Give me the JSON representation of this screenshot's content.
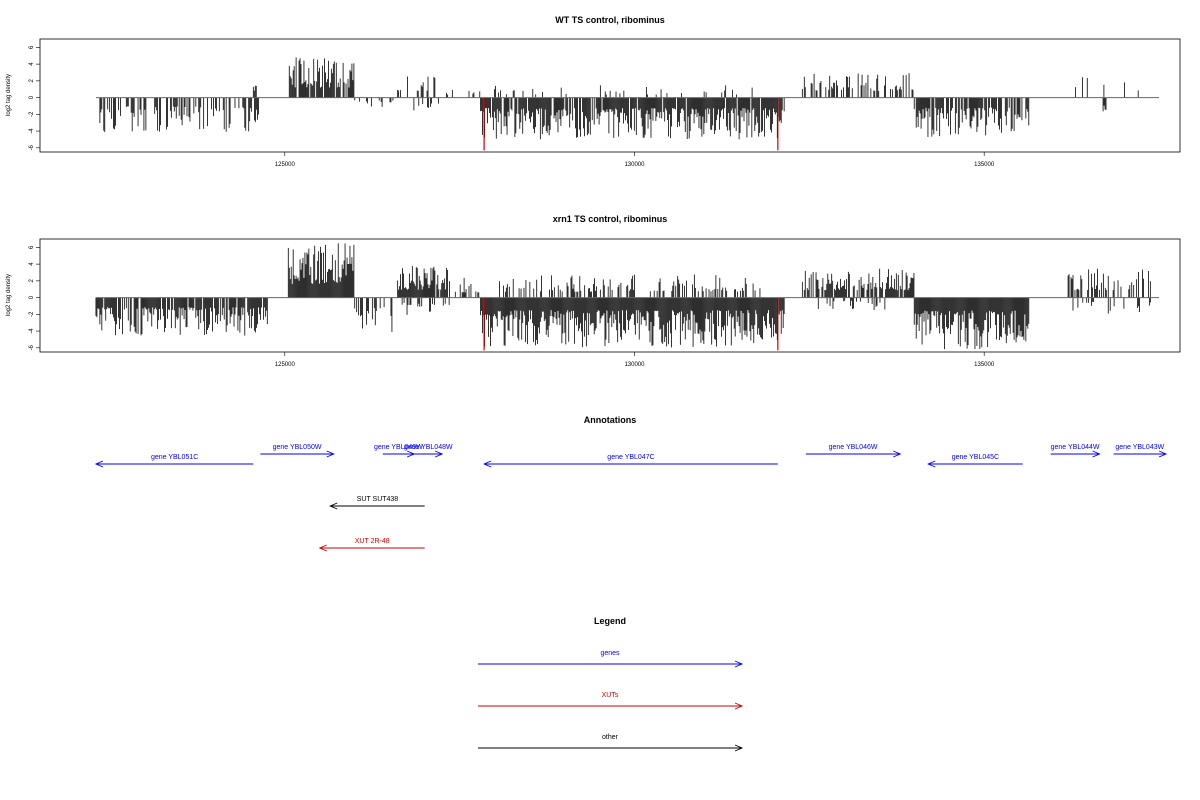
{
  "chart_data": [
    {
      "type": "bar",
      "title": "WT TS control, ribominus",
      "ylabel": "log2 tag density",
      "xlim": [
        121500,
        137800
      ],
      "ylim": [
        -6.5,
        7
      ],
      "x_ticks": [
        125000,
        130000,
        135000
      ],
      "x_tick_labels": [
        "125000",
        "130000",
        "135000"
      ],
      "y_ticks": [
        -6,
        -4,
        -2,
        0,
        2,
        4,
        6
      ],
      "y_tick_labels": [
        "-6",
        "-4",
        "-2",
        "0",
        "2",
        "4",
        "6"
      ],
      "color": "#000000",
      "highlight_color": "#cc0000",
      "profile": [
        {
          "start": 122300,
          "end": 124750,
          "sign": -1,
          "max": 4.2,
          "density": 0.45
        },
        {
          "start": 124550,
          "end": 124600,
          "sign": 1,
          "max": 1.5,
          "density": 1
        },
        {
          "start": 125050,
          "end": 126000,
          "sign": 1,
          "max": 4.8,
          "density": 0.85
        },
        {
          "start": 126000,
          "end": 126550,
          "sign": -1,
          "max": 1.2,
          "density": 0.3
        },
        {
          "start": 126600,
          "end": 127150,
          "sign": 1,
          "max": 2.8,
          "density": 0.35
        },
        {
          "start": 126650,
          "end": 127350,
          "sign": -1,
          "max": 2.5,
          "density": 0.3
        },
        {
          "start": 127200,
          "end": 127800,
          "sign": 1,
          "max": 1.2,
          "density": 0.15
        },
        {
          "start": 127800,
          "end": 132150,
          "sign": -1,
          "max": 5.0,
          "density": 0.9
        },
        {
          "start": 128000,
          "end": 131800,
          "sign": 1,
          "max": 1.5,
          "density": 0.12
        },
        {
          "start": 132400,
          "end": 134000,
          "sign": 1,
          "max": 3.2,
          "density": 0.4
        },
        {
          "start": 134000,
          "end": 135650,
          "sign": -1,
          "max": 4.8,
          "density": 0.75
        },
        {
          "start": 136250,
          "end": 137300,
          "sign": 1,
          "max": 2.7,
          "density": 0.12
        },
        {
          "start": 136700,
          "end": 136750,
          "sign": -1,
          "max": 1.7,
          "density": 1
        }
      ],
      "highlights": [
        {
          "x": 127850,
          "y": -6.3
        },
        {
          "x": 132050,
          "y": -6.3
        }
      ]
    },
    {
      "type": "bar",
      "title": "xrn1 TS control, ribominus",
      "ylabel": "log2 tag density",
      "xlim": [
        121500,
        137800
      ],
      "ylim": [
        -6.5,
        7
      ],
      "x_ticks": [
        125000,
        130000,
        135000
      ],
      "x_tick_labels": [
        "125000",
        "130000",
        "135000"
      ],
      "y_ticks": [
        -6,
        -4,
        -2,
        0,
        2,
        4,
        6
      ],
      "y_tick_labels": [
        "-6",
        "-4",
        "-2",
        "0",
        "2",
        "4",
        "6"
      ],
      "color": "#000000",
      "highlight_color": "#cc0000",
      "profile": [
        {
          "start": 122300,
          "end": 124750,
          "sign": -1,
          "max": 4.6,
          "density": 0.85
        },
        {
          "start": 125050,
          "end": 126000,
          "sign": 1,
          "max": 6.5,
          "density": 1
        },
        {
          "start": 126000,
          "end": 126550,
          "sign": -1,
          "max": 4.5,
          "density": 0.5
        },
        {
          "start": 126600,
          "end": 127350,
          "sign": 1,
          "max": 3.8,
          "density": 0.8
        },
        {
          "start": 126650,
          "end": 127350,
          "sign": -1,
          "max": 2.5,
          "density": 0.4
        },
        {
          "start": 127200,
          "end": 127800,
          "sign": 1,
          "max": 2.5,
          "density": 0.35
        },
        {
          "start": 127800,
          "end": 132150,
          "sign": -1,
          "max": 6.0,
          "density": 1
        },
        {
          "start": 128000,
          "end": 131800,
          "sign": 1,
          "max": 2.8,
          "density": 0.35
        },
        {
          "start": 132400,
          "end": 134000,
          "sign": 1,
          "max": 3.5,
          "density": 0.8
        },
        {
          "start": 132600,
          "end": 133600,
          "sign": -1,
          "max": 1.5,
          "density": 0.2
        },
        {
          "start": 134000,
          "end": 135650,
          "sign": -1,
          "max": 6.2,
          "density": 1
        },
        {
          "start": 136200,
          "end": 137400,
          "sign": 1,
          "max": 3.5,
          "density": 0.45
        },
        {
          "start": 136200,
          "end": 137400,
          "sign": -1,
          "max": 2.0,
          "density": 0.25
        }
      ],
      "highlights": [
        {
          "x": 127850,
          "y": -6.3
        },
        {
          "x": 132050,
          "y": -6.3
        }
      ]
    }
  ],
  "annotations": {
    "title": "Annotations",
    "xlim": [
      121500,
      137800
    ],
    "features": [
      {
        "label": "gene YBL051C",
        "start": 122300,
        "end": 124550,
        "strand": "-",
        "track": 2,
        "color": "#0000ff"
      },
      {
        "label": "gene YBL050W",
        "start": 124650,
        "end": 125700,
        "strand": "+",
        "track": 1,
        "color": "#0000ff"
      },
      {
        "label": "gene YBL049W",
        "start": 126400,
        "end": 126850,
        "strand": "+",
        "track": 1,
        "color": "#0000ff"
      },
      {
        "label": "gene YBL048W",
        "start": 126850,
        "end": 127250,
        "strand": "+",
        "track": 1,
        "color": "#0000ff"
      },
      {
        "label": "gene YBL047C",
        "start": 127850,
        "end": 132050,
        "strand": "-",
        "track": 2,
        "color": "#0000ff"
      },
      {
        "label": "gene YBL046W",
        "start": 132450,
        "end": 133800,
        "strand": "+",
        "track": 1,
        "color": "#0000ff"
      },
      {
        "label": "gene YBL045C",
        "start": 134200,
        "end": 135550,
        "strand": "-",
        "track": 2,
        "color": "#0000ff"
      },
      {
        "label": "gene YBL044W",
        "start": 135950,
        "end": 136650,
        "strand": "+",
        "track": 1,
        "color": "#0000ff"
      },
      {
        "label": "gene YBL043W",
        "start": 136850,
        "end": 137600,
        "strand": "+",
        "track": 1,
        "color": "#0000ff"
      },
      {
        "label": "SUT SUT438",
        "start": 125650,
        "end": 127000,
        "strand": "-",
        "track": 3,
        "color": "#000000"
      },
      {
        "label": "XUT 2R-48",
        "start": 125500,
        "end": 127000,
        "strand": "-",
        "track": 4,
        "color": "#cc0000"
      }
    ]
  },
  "legend": {
    "title": "Legend",
    "items": [
      {
        "label": "genes",
        "color": "#0000ff"
      },
      {
        "label": "XUTs",
        "color": "#cc0000"
      },
      {
        "label": "other",
        "color": "#000000"
      }
    ]
  }
}
